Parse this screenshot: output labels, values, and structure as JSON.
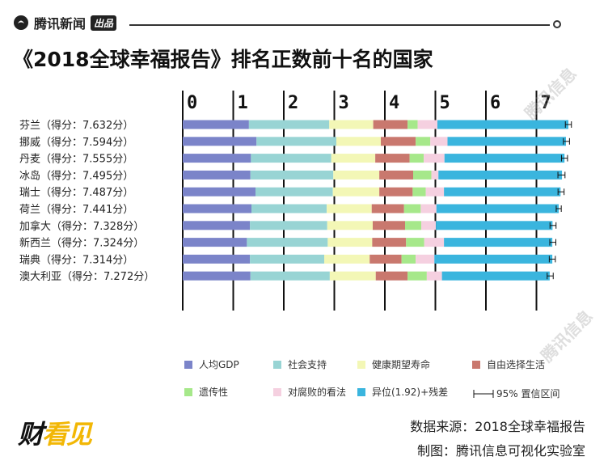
{
  "header": {
    "brand": "腾讯新闻",
    "brand_badge": "出品"
  },
  "title": "《2018全球幸福报告》排名正数前十名的国家",
  "footer": {
    "source": "数据来源：2018全球幸福报告",
    "credit": "制图：腾讯信息可视化实验室",
    "logo_main": "财",
    "logo_accent": "看见"
  },
  "watermark": "腾讯信息",
  "chart_data": {
    "type": "bar",
    "orientation": "horizontal",
    "stacked": true,
    "xlim": [
      0,
      7.5
    ],
    "xticks": [
      0,
      1,
      2,
      3,
      4,
      5,
      6,
      7
    ],
    "categories": [
      "芬兰（得分：7.632分）",
      "挪威（得分：7.594分）",
      "丹麦（得分：7.555分）",
      "冰岛（得分：7.495分）",
      "瑞士（得分：7.487分）",
      "荷兰（得分：7.441分）",
      "加拿大（得分：7.328分）",
      "新西兰（得分：7.324分）",
      "瑞典（得分：7.314分）",
      "澳大利亚（得分：7.272分）"
    ],
    "scores": [
      7.632,
      7.594,
      7.555,
      7.495,
      7.487,
      7.441,
      7.328,
      7.324,
      7.314,
      7.272
    ],
    "series": [
      {
        "name": "人均GDP",
        "color": "#7b84c9",
        "values": [
          1.31,
          1.46,
          1.35,
          1.34,
          1.44,
          1.36,
          1.33,
          1.27,
          1.33,
          1.34
        ]
      },
      {
        "name": "社会支持",
        "color": "#98d4d4",
        "values": [
          1.59,
          1.58,
          1.59,
          1.64,
          1.53,
          1.49,
          1.53,
          1.6,
          1.47,
          1.57
        ]
      },
      {
        "name": "健康期望寿命",
        "color": "#f3f7b6",
        "values": [
          0.87,
          0.88,
          0.87,
          0.91,
          0.92,
          0.89,
          0.9,
          0.88,
          0.9,
          0.91
        ]
      },
      {
        "name": "自由选择生活",
        "color": "#c9786e",
        "values": [
          0.68,
          0.69,
          0.68,
          0.67,
          0.66,
          0.64,
          0.64,
          0.67,
          0.63,
          0.63
        ]
      },
      {
        "name": "遗传性",
        "color": "#a6e88a",
        "values": [
          0.2,
          0.29,
          0.28,
          0.36,
          0.26,
          0.33,
          0.32,
          0.36,
          0.28,
          0.38
        ]
      },
      {
        "name": "对腐败的看法",
        "color": "#f5d0e0",
        "values": [
          0.39,
          0.34,
          0.41,
          0.14,
          0.36,
          0.31,
          0.29,
          0.39,
          0.37,
          0.3
        ]
      },
      {
        "name": "异位(1.92)+残差",
        "color": "#3ab5de",
        "values": [
          2.592,
          2.344,
          2.375,
          2.445,
          2.307,
          2.421,
          2.308,
          2.144,
          2.334,
          2.132
        ]
      }
    ],
    "ci_half_width": [
      0.06,
      0.06,
      0.06,
      0.07,
      0.06,
      0.05,
      0.06,
      0.06,
      0.06,
      0.06
    ],
    "ci_label": "95%  置信区间",
    "legend_position": "bottom"
  }
}
